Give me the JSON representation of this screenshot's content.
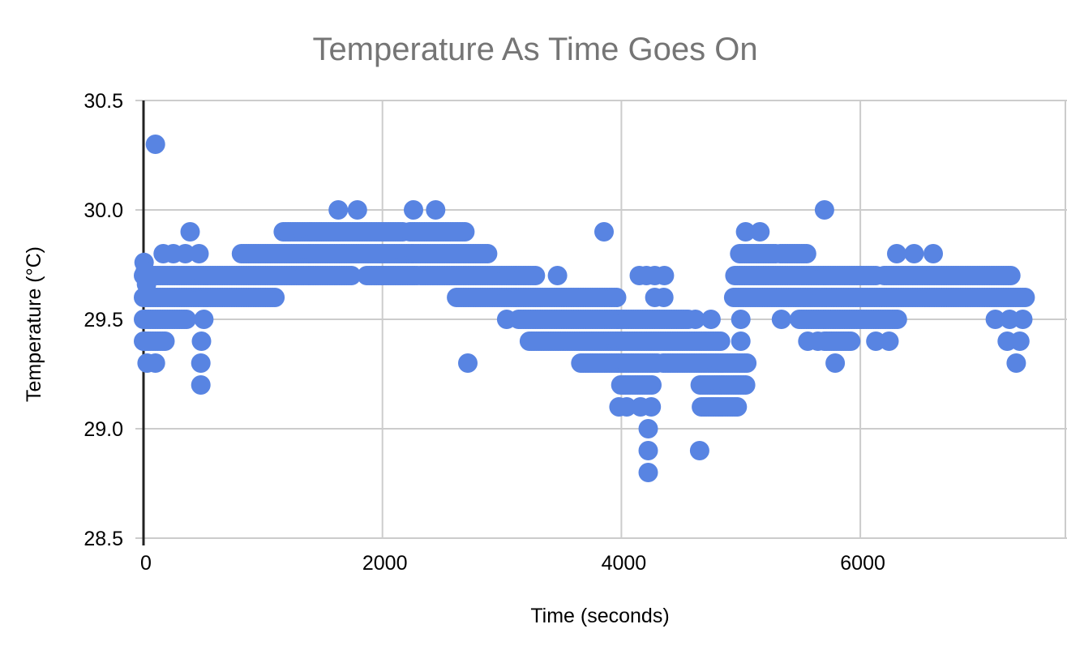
{
  "chart_data": {
    "type": "scatter",
    "title": "Temperature As Time Goes On",
    "xlabel": "Time (seconds)",
    "ylabel": "Temperature (°C)",
    "xlim": [
      0,
      7730
    ],
    "ylim": [
      28.5,
      30.5
    ],
    "xticks": [
      0,
      2000,
      4000,
      6000
    ],
    "yticks": [
      28.5,
      29.0,
      29.5,
      30.0,
      30.5
    ],
    "ytick_labels": [
      "28.5",
      "29.0",
      "29.5",
      "30.0",
      "30.5"
    ],
    "xtick_labels": [
      "0",
      "2000",
      "4000",
      "6000"
    ],
    "grid": true,
    "legend": "none",
    "point_color": "#5884e2",
    "grid_color": "#cccccc",
    "axis_line_color": "#222222",
    "title_color": "#757575",
    "temperature_resolution_c": 0.1,
    "sample_interval_s": 20,
    "series": [
      {
        "name": "Temperature",
        "runs_temp_t0_t1": [
          [
            29.9,
            1170,
            2170
          ],
          [
            29.9,
            2230,
            2690
          ],
          [
            29.8,
            820,
            2890
          ],
          [
            29.8,
            4990,
            5300
          ],
          [
            29.8,
            5330,
            5560
          ],
          [
            29.7,
            0,
            1750
          ],
          [
            29.7,
            1870,
            2290
          ],
          [
            29.7,
            2320,
            3280
          ],
          [
            29.7,
            4950,
            6140
          ],
          [
            29.7,
            6200,
            7270
          ],
          [
            29.6,
            0,
            1105
          ],
          [
            29.6,
            2620,
            3975
          ],
          [
            29.6,
            4940,
            7385
          ],
          [
            29.5,
            0,
            375
          ],
          [
            29.5,
            3140,
            4560
          ],
          [
            29.5,
            5490,
            6310
          ],
          [
            29.4,
            0,
            180
          ],
          [
            29.4,
            3230,
            4830
          ],
          [
            29.4,
            5700,
            5920
          ],
          [
            29.3,
            3660,
            4310
          ],
          [
            29.3,
            4350,
            5050
          ],
          [
            29.2,
            3995,
            4255
          ],
          [
            29.2,
            4660,
            5050
          ],
          [
            29.1,
            4670,
            4980
          ]
        ],
        "points_t_temp": [
          [
            100,
            30.3
          ],
          [
            1630,
            30.0
          ],
          [
            1790,
            30.0
          ],
          [
            2260,
            30.0
          ],
          [
            2445,
            30.0
          ],
          [
            5700,
            30.0
          ],
          [
            390,
            29.9
          ],
          [
            3855,
            29.9
          ],
          [
            5040,
            29.9
          ],
          [
            5160,
            29.9
          ],
          [
            165,
            29.8
          ],
          [
            250,
            29.8
          ],
          [
            350,
            29.8
          ],
          [
            465,
            29.8
          ],
          [
            6305,
            29.8
          ],
          [
            6450,
            29.8
          ],
          [
            6610,
            29.8
          ],
          [
            5,
            29.76
          ],
          [
            15,
            29.72
          ],
          [
            25,
            29.66
          ],
          [
            35,
            29.62
          ],
          [
            3465,
            29.7
          ],
          [
            4150,
            29.7
          ],
          [
            4210,
            29.7
          ],
          [
            4280,
            29.7
          ],
          [
            4360,
            29.7
          ],
          [
            4280,
            29.6
          ],
          [
            4355,
            29.6
          ],
          [
            505,
            29.5
          ],
          [
            3040,
            29.5
          ],
          [
            4620,
            29.5
          ],
          [
            4750,
            29.5
          ],
          [
            5000,
            29.5
          ],
          [
            5340,
            29.5
          ],
          [
            7130,
            29.5
          ],
          [
            7250,
            29.5
          ],
          [
            7360,
            29.5
          ],
          [
            485,
            29.4
          ],
          [
            5000,
            29.4
          ],
          [
            5560,
            29.4
          ],
          [
            5645,
            29.4
          ],
          [
            6130,
            29.4
          ],
          [
            6240,
            29.4
          ],
          [
            7230,
            29.4
          ],
          [
            7335,
            29.4
          ],
          [
            30,
            29.3
          ],
          [
            100,
            29.3
          ],
          [
            480,
            29.3
          ],
          [
            2715,
            29.3
          ],
          [
            5790,
            29.3
          ],
          [
            7305,
            29.3
          ],
          [
            480,
            29.2
          ],
          [
            3980,
            29.1
          ],
          [
            4045,
            29.1
          ],
          [
            4160,
            29.1
          ],
          [
            4250,
            29.1
          ],
          [
            4225,
            29.0
          ],
          [
            4225,
            28.9
          ],
          [
            4655,
            28.9
          ],
          [
            4225,
            28.8
          ]
        ]
      }
    ]
  }
}
